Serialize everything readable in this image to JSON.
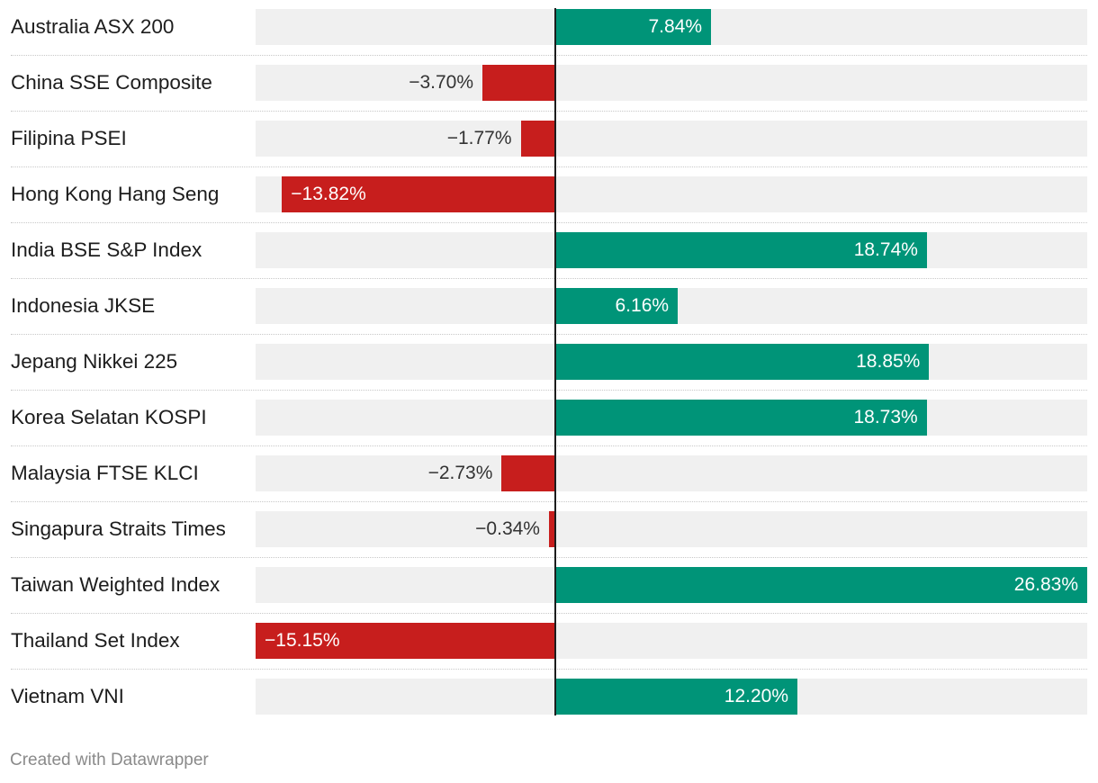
{
  "chart_data": {
    "type": "bar",
    "orientation": "horizontal",
    "categories": [
      "Australia ASX 200",
      "China SSE Composite",
      "Filipina PSEI",
      "Hong Kong Hang Seng",
      "India BSE S&P Index",
      "Indonesia JKSE",
      "Jepang Nikkei 225",
      "Korea Selatan KOSPI",
      "Malaysia FTSE KLCI",
      "Singapura Straits Times",
      "Taiwan Weighted Index",
      "Thailand Set Index",
      "Vietnam VNI"
    ],
    "values": [
      7.84,
      -3.7,
      -1.77,
      -13.82,
      18.74,
      6.16,
      18.85,
      18.73,
      -2.73,
      -0.34,
      26.83,
      -15.15,
      12.2
    ],
    "value_labels": [
      "7.84%",
      "−3.70%",
      "−1.77%",
      "−13.82%",
      "18.74%",
      "6.16%",
      "18.85%",
      "18.73%",
      "−2.73%",
      "−0.34%",
      "26.83%",
      "−15.15%",
      "12.20%"
    ],
    "xlim": [
      -15.15,
      26.83
    ],
    "grid": false,
    "colors": {
      "positive": "#009478",
      "negative": "#c71e1d",
      "track": "#f0f0f0",
      "zero_line": "#1d1d1d"
    }
  },
  "footer": {
    "credit": "Created with Datawrapper"
  }
}
